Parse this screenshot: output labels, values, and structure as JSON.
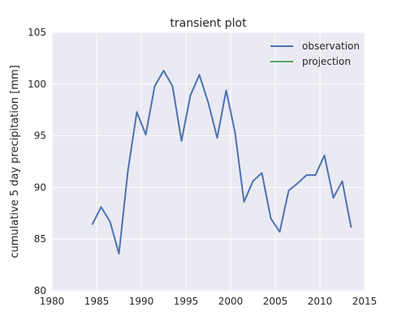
{
  "chart_data": {
    "type": "line",
    "title": "transient plot",
    "xlabel": "",
    "ylabel": "cumulative 5 day precipitation [mm]",
    "xlim": [
      1980,
      2015
    ],
    "ylim": [
      80,
      105
    ],
    "xticks": [
      1980,
      1985,
      1990,
      1995,
      2000,
      2005,
      2010,
      2015
    ],
    "yticks": [
      80,
      85,
      90,
      95,
      100,
      105
    ],
    "grid": true,
    "legend_position": "top-right",
    "series": [
      {
        "name": "observation",
        "color": "#4c72b0",
        "x": [
          1984.5,
          1985.5,
          1986.5,
          1987.5,
          1988.5,
          1989.5,
          1990.5,
          1991.5,
          1992.5,
          1993.5,
          1994.5,
          1995.5,
          1996.5,
          1997.5,
          1998.5,
          1999.5,
          2000.5,
          2001.5,
          2002.5,
          2003.5,
          2004.5,
          2005.5,
          2006.5,
          2007.5,
          2008.5,
          2009.5,
          2010.5,
          2011.5,
          2012.5,
          2013.5
        ],
        "y": [
          86.4,
          88.1,
          86.7,
          83.6,
          91.6,
          97.3,
          95.1,
          99.8,
          101.3,
          99.8,
          94.5,
          98.9,
          100.9,
          98.2,
          94.8,
          99.4,
          95.3,
          88.6,
          90.6,
          91.4,
          87.0,
          85.7,
          89.7,
          90.4,
          91.2,
          91.2,
          93.1,
          89.0,
          90.6,
          86.1
        ]
      },
      {
        "name": "projection",
        "color": "#55a868",
        "x": [],
        "y": []
      }
    ]
  }
}
